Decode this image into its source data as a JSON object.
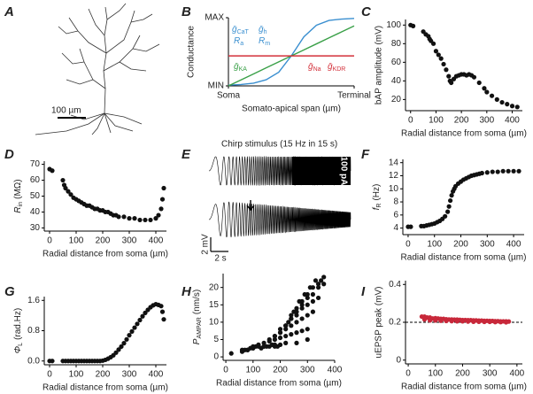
{
  "chart_data": [
    {
      "type": "morphology",
      "label": "A",
      "scale_bar": "100 µm"
    },
    {
      "type": "line",
      "label": "B",
      "ylabel": "Conductance",
      "xlabel": "Somato-apical span (µm)",
      "xlim": [
        0,
        1
      ],
      "xticks": [
        {
          "value": 0,
          "label": "Soma"
        },
        {
          "value": 1,
          "label": "Terminal"
        }
      ],
      "ylim": [
        0,
        1
      ],
      "yticks": [
        {
          "value": 0,
          "label": "MIN"
        },
        {
          "value": 1,
          "label": "MAX"
        }
      ],
      "x": [
        0,
        0.1,
        0.2,
        0.3,
        0.4,
        0.5,
        0.6,
        0.7,
        0.8,
        0.9,
        1
      ],
      "series": [
        {
          "color": "#3a8fd0",
          "values": [
            0.01,
            0.02,
            0.04,
            0.09,
            0.2,
            0.44,
            0.72,
            0.89,
            0.96,
            0.98,
            0.99
          ]
        },
        {
          "color": "#3aa048",
          "values": [
            0,
            0.088,
            0.176,
            0.264,
            0.352,
            0.44,
            0.528,
            0.616,
            0.704,
            0.792,
            0.88
          ]
        },
        {
          "color": "#d3303a",
          "values": [
            0.44,
            0.44,
            0.44,
            0.44,
            0.44,
            0.44,
            0.44,
            0.44,
            0.44,
            0.44,
            0.44
          ]
        }
      ],
      "annotations": [
        {
          "text": "ḡ",
          "sub": "CaT",
          "color": "#3a8fd0"
        },
        {
          "text": "R",
          "sub": "a",
          "color": "#3a8fd0"
        },
        {
          "text": "ḡ",
          "sub": "h",
          "color": "#3a8fd0"
        },
        {
          "text": "R",
          "sub": "m",
          "color": "#3a8fd0"
        },
        {
          "text": "ḡ",
          "sub": "KA",
          "color": "#3aa048"
        },
        {
          "text": "ḡ",
          "sub": "Na",
          "color": "#d3303a"
        },
        {
          "text": "ḡ",
          "sub": "KDR",
          "color": "#d3303a"
        }
      ]
    },
    {
      "type": "scatter",
      "label": "C",
      "ylabel": "bAP amplitude (mV)",
      "xlabel": "Radial distance from soma (µm)",
      "xlim": [
        -20,
        440
      ],
      "xticks": [
        0,
        100,
        200,
        300,
        400
      ],
      "ylim": [
        8,
        106
      ],
      "yticks": [
        20,
        40,
        60,
        80,
        100
      ],
      "color": "#111111",
      "x": [
        0,
        10,
        50,
        60,
        70,
        75,
        80,
        90,
        100,
        110,
        120,
        130,
        140,
        150,
        155,
        160,
        170,
        180,
        190,
        200,
        210,
        220,
        230,
        240,
        250,
        270,
        290,
        300,
        320,
        340,
        360,
        380,
        400,
        420
      ],
      "values": [
        100,
        99,
        93,
        90,
        88,
        85,
        83,
        80,
        72,
        68,
        64,
        58,
        52,
        45,
        40,
        38,
        42,
        45,
        46,
        47,
        47,
        46,
        47,
        46,
        44,
        38,
        32,
        28,
        24,
        20,
        17,
        15,
        13,
        12
      ]
    },
    {
      "type": "scatter",
      "label": "D",
      "ylabel": {
        "text": "R",
        "sub": "in",
        "unit": "(MΩ)"
      },
      "xlabel": "Radial distance from soma (µm)",
      "xlim": [
        -20,
        440
      ],
      "xticks": [
        0,
        100,
        200,
        300,
        400
      ],
      "ylim": [
        28,
        72
      ],
      "yticks": [
        30,
        40,
        50,
        60,
        70
      ],
      "color": "#111111",
      "x": [
        0,
        10,
        50,
        55,
        60,
        70,
        80,
        90,
        100,
        110,
        120,
        130,
        140,
        150,
        160,
        170,
        180,
        190,
        200,
        210,
        220,
        230,
        240,
        250,
        260,
        280,
        300,
        320,
        340,
        360,
        380,
        400,
        410,
        420,
        425,
        430
      ],
      "values": [
        67,
        66,
        60,
        57,
        55,
        53,
        51,
        49,
        48,
        47,
        46,
        45,
        44,
        44,
        43,
        42,
        42,
        41,
        41,
        40,
        40,
        39,
        38,
        38,
        37,
        37,
        36,
        36,
        35,
        35,
        35,
        36,
        38,
        42,
        48,
        55
      ]
    },
    {
      "type": "traces",
      "label": "E",
      "stimulus_label": "Chirp stimulus (15 Hz in 15 s)",
      "current_scale": "100 pA",
      "voltage_scale": "2 mV",
      "time_scale": "2 s"
    },
    {
      "type": "scatter",
      "label": "F",
      "ylabel": {
        "text": "f",
        "sub": "R",
        "unit": "(Hz)"
      },
      "xlabel": "Radial distance from soma (µm)",
      "xlim": [
        -20,
        440
      ],
      "xticks": [
        0,
        100,
        200,
        300,
        400
      ],
      "ylim": [
        3,
        14.5
      ],
      "yticks": [
        4,
        6,
        8,
        10,
        12,
        14
      ],
      "color": "#111111",
      "x": [
        0,
        10,
        50,
        60,
        70,
        80,
        90,
        100,
        110,
        120,
        130,
        140,
        150,
        155,
        160,
        165,
        170,
        175,
        180,
        190,
        200,
        210,
        220,
        230,
        240,
        250,
        260,
        270,
        280,
        300,
        320,
        340,
        360,
        380,
        400,
        420
      ],
      "values": [
        4.2,
        4.2,
        4.3,
        4.3,
        4.4,
        4.5,
        4.6,
        4.7,
        4.9,
        5.1,
        5.4,
        5.8,
        6.5,
        7.3,
        8.2,
        9,
        9.6,
        10,
        10.4,
        10.8,
        11.1,
        11.4,
        11.6,
        11.8,
        12,
        12.1,
        12.2,
        12.3,
        12.4,
        12.5,
        12.6,
        12.6,
        12.7,
        12.7,
        12.7,
        12.7
      ]
    },
    {
      "type": "scatter",
      "label": "G",
      "ylabel": {
        "text": "Φ",
        "sub": "L",
        "unit": "(rad.Hz)"
      },
      "xlabel": "Radial distance from soma (µm)",
      "xlim": [
        -20,
        440
      ],
      "xticks": [
        0,
        100,
        200,
        300,
        400
      ],
      "ylim": [
        -0.1,
        1.7
      ],
      "yticks": [
        {
          "value": 0,
          "label": "0.0"
        },
        0.8,
        1.6
      ],
      "color": "#111111",
      "x": [
        0,
        10,
        50,
        60,
        70,
        80,
        90,
        100,
        110,
        120,
        130,
        140,
        150,
        160,
        170,
        180,
        190,
        200,
        210,
        220,
        230,
        240,
        250,
        260,
        270,
        280,
        290,
        300,
        310,
        320,
        330,
        340,
        350,
        360,
        370,
        380,
        390,
        400,
        410,
        420,
        425,
        430
      ],
      "values": [
        0,
        0,
        0,
        0,
        0,
        0,
        0,
        0,
        0,
        0,
        0,
        0,
        0,
        0,
        0,
        0,
        0,
        0.01,
        0.03,
        0.06,
        0.1,
        0.15,
        0.22,
        0.3,
        0.38,
        0.47,
        0.57,
        0.68,
        0.78,
        0.88,
        0.98,
        1.08,
        1.18,
        1.27,
        1.35,
        1.42,
        1.47,
        1.5,
        1.48,
        1.45,
        1.3,
        1.1
      ]
    },
    {
      "type": "scatter",
      "label": "H",
      "ylabel": {
        "text": "P",
        "sub": "AMPAR",
        "unit": "(nm/s)"
      },
      "xlabel": "Radial distance from soma (µm)",
      "xlim": [
        -10,
        400
      ],
      "xticks": [
        0,
        100,
        200,
        300,
        400
      ],
      "ylim": [
        -1,
        24
      ],
      "yticks": [
        0,
        5,
        10,
        15,
        20
      ],
      "color": "#111111",
      "x": [
        20,
        60,
        70,
        80,
        90,
        100,
        110,
        120,
        130,
        140,
        150,
        160,
        170,
        180,
        190,
        200,
        100,
        120,
        140,
        160,
        180,
        200,
        220,
        240,
        260,
        280,
        300,
        160,
        180,
        200,
        220,
        240,
        260,
        280,
        300,
        320,
        180,
        200,
        220,
        240,
        260,
        280,
        300,
        320,
        340,
        200,
        220,
        240,
        260,
        280,
        300,
        320,
        340,
        360,
        220,
        240,
        260,
        280,
        300,
        320,
        340,
        360,
        230,
        250,
        270,
        290,
        310,
        330,
        350,
        60,
        80,
        100,
        140,
        180,
        220,
        260,
        300
      ],
      "values": [
        1,
        2,
        2,
        2,
        2.5,
        2.5,
        3,
        3,
        2.5,
        3,
        3,
        3,
        3.5,
        3.5,
        3,
        3.5,
        3,
        3.5,
        4,
        4.5,
        5,
        5.5,
        6,
        6.5,
        7,
        7.5,
        8,
        5,
        6,
        7,
        8,
        9,
        10,
        11,
        12,
        13,
        6,
        8,
        9,
        11,
        12,
        14,
        15,
        16,
        17,
        7,
        9,
        11,
        13,
        15,
        17,
        18,
        20,
        21,
        9,
        12,
        14,
        16,
        18,
        20,
        21,
        23,
        10,
        13,
        16,
        18,
        20,
        22,
        22,
        1.5,
        2,
        2.5,
        3,
        3,
        4,
        4,
        5
      ]
    },
    {
      "type": "scatter",
      "label": "I",
      "ylabel": "uEPSP peak (mV)",
      "xlabel": "Radial distance from soma (µm)",
      "xlim": [
        -10,
        420
      ],
      "xticks": [
        0,
        100,
        200,
        300,
        400
      ],
      "ylim": [
        -0.02,
        0.42
      ],
      "yticks": [
        0,
        0.2,
        0.4
      ],
      "color": "#c8283a",
      "hline": 0.2,
      "x": [
        50,
        60,
        70,
        80,
        90,
        100,
        110,
        120,
        130,
        140,
        150,
        160,
        170,
        180,
        190,
        200,
        210,
        220,
        230,
        240,
        250,
        260,
        270,
        280,
        290,
        300,
        310,
        320,
        330,
        340,
        350,
        360,
        370,
        60,
        80,
        100,
        120,
        140,
        160,
        180,
        200,
        220,
        240,
        260,
        280,
        300,
        320,
        340,
        360
      ],
      "values": [
        0.23,
        0.23,
        0.225,
        0.225,
        0.22,
        0.222,
        0.22,
        0.218,
        0.218,
        0.216,
        0.215,
        0.215,
        0.214,
        0.214,
        0.213,
        0.212,
        0.212,
        0.211,
        0.211,
        0.21,
        0.21,
        0.209,
        0.209,
        0.208,
        0.208,
        0.207,
        0.207,
        0.206,
        0.206,
        0.205,
        0.205,
        0.205,
        0.204,
        0.215,
        0.21,
        0.21,
        0.208,
        0.207,
        0.206,
        0.205,
        0.205,
        0.204,
        0.203,
        0.203,
        0.202,
        0.202,
        0.201,
        0.201,
        0.2
      ]
    }
  ]
}
